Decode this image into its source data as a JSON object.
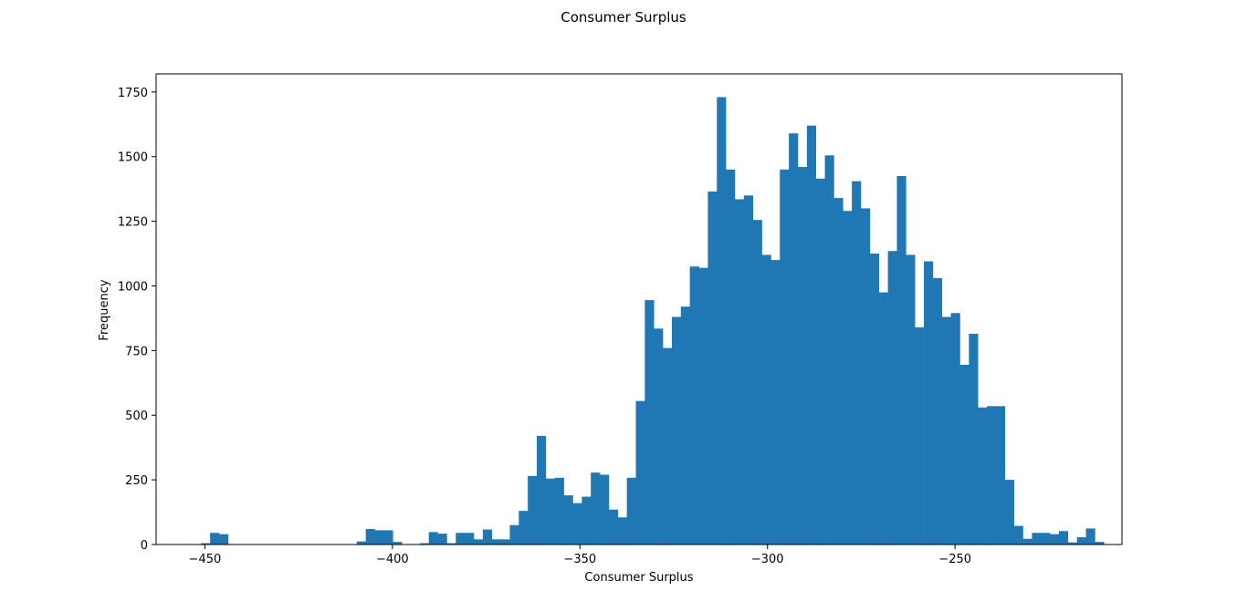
{
  "figure": {
    "suptitle": "Consumer Surplus"
  },
  "chart_data": {
    "type": "histogram",
    "title": "",
    "xlabel": "Consumer Surplus",
    "ylabel": "Frequency",
    "bin_start": -451.0,
    "bin_width": 2.4,
    "xlim": [
      -463.0,
      -205.5
    ],
    "ylim": [
      0,
      1820
    ],
    "xticks": [
      -450,
      -400,
      -350,
      -300,
      -250
    ],
    "xtick_labels": [
      "−450",
      "−400",
      "−350",
      "−300",
      "−250"
    ],
    "yticks": [
      0,
      250,
      500,
      750,
      1000,
      1250,
      1500,
      1750
    ],
    "ytick_labels": [
      "0",
      "250",
      "500",
      "750",
      "1000",
      "1250",
      "1500",
      "1750"
    ],
    "color": "#1f77b4",
    "counts": [
      5,
      45,
      40,
      0,
      0,
      0,
      0,
      0,
      0,
      0,
      0,
      0,
      0,
      0,
      0,
      0,
      0,
      0,
      0,
      0,
      0,
      0,
      0,
      0,
      0,
      0,
      0,
      0,
      0,
      0,
      0,
      0,
      0,
      0,
      0,
      0,
      0,
      0,
      0,
      0,
      0,
      0,
      0,
      0,
      0,
      0,
      0,
      0,
      0,
      0,
      0,
      0,
      0,
      0,
      0,
      0,
      0,
      0,
      0,
      0,
      0,
      0,
      0,
      0,
      0,
      0,
      0,
      0,
      0,
      0,
      0,
      0,
      0,
      0,
      0,
      0,
      0,
      0,
      0,
      0,
      0,
      0,
      0,
      0,
      0,
      0,
      0,
      0,
      0,
      0,
      0,
      0,
      0,
      0,
      0,
      0,
      0,
      0,
      0,
      0
    ],
    "grid": false,
    "legend": false
  }
}
